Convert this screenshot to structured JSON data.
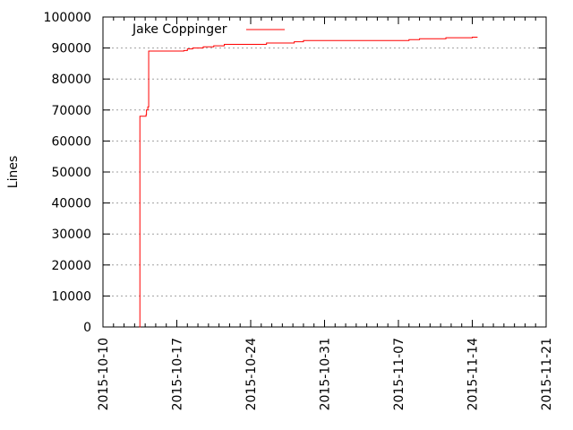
{
  "chart_data": {
    "type": "line",
    "title": "",
    "xlabel": "",
    "ylabel": "Lines",
    "xlim": [
      "2015-10-10",
      "2015-11-21"
    ],
    "ylim": [
      0,
      100000
    ],
    "grid": true,
    "x_ticks": [
      "2015-10-10",
      "2015-10-17",
      "2015-10-24",
      "2015-10-31",
      "2015-11-07",
      "2015-11-14",
      "2015-11-21"
    ],
    "y_ticks": [
      0,
      10000,
      20000,
      30000,
      40000,
      50000,
      60000,
      70000,
      80000,
      90000,
      100000
    ],
    "legend_position": "top-left",
    "series": [
      {
        "name": "Jake Coppinger",
        "color": "#ff0000",
        "points": [
          [
            "2015-10-13 11:00",
            0
          ],
          [
            "2015-10-13 12:00",
            68000
          ],
          [
            "2015-10-14 02:00",
            68500
          ],
          [
            "2015-10-14 03:00",
            70000
          ],
          [
            "2015-10-14 06:00",
            71000
          ],
          [
            "2015-10-14 08:00",
            89000
          ],
          [
            "2015-10-17 16:00",
            89200
          ],
          [
            "2015-10-18 00:00",
            89700
          ],
          [
            "2015-10-18 12:00",
            90000
          ],
          [
            "2015-10-19 12:00",
            90400
          ],
          [
            "2015-10-20 12:00",
            90700
          ],
          [
            "2015-10-21 12:00",
            91200
          ],
          [
            "2015-10-25 12:00",
            91600
          ],
          [
            "2015-10-28 03:00",
            92000
          ],
          [
            "2015-10-29 00:00",
            92400
          ],
          [
            "2015-11-08 00:00",
            92700
          ],
          [
            "2015-11-09 00:00",
            93000
          ],
          [
            "2015-11-11 12:00",
            93300
          ],
          [
            "2015-11-14 00:00",
            93500
          ],
          [
            "2015-11-14 12:00",
            93500
          ]
        ]
      }
    ]
  }
}
